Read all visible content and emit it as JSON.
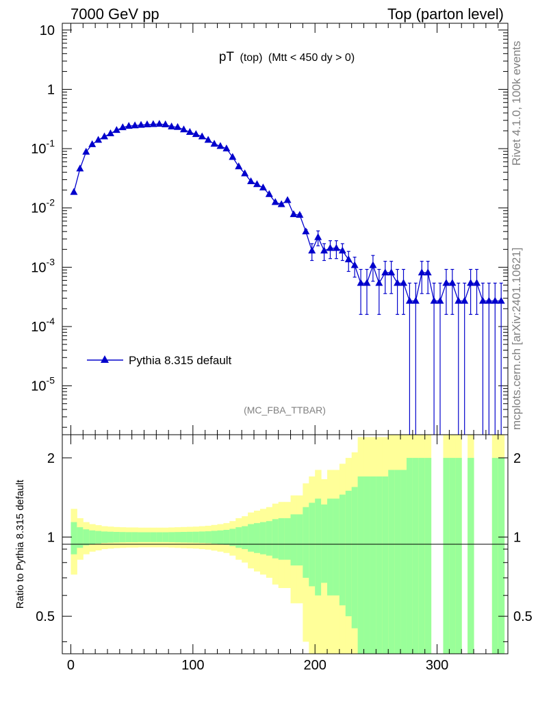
{
  "header": {
    "left": "7000 GeV pp",
    "right": "Top (parton level)"
  },
  "side": {
    "rivet": "Rivet 4.1.0,  100k events",
    "mcplots": "mcplots.cern.ch [arXiv:2401.10621]"
  },
  "colors": {
    "series": "#0000cc",
    "band_inner": "#99ff99",
    "band_outer": "#ffff99"
  },
  "chart_data": [
    {
      "type": "line",
      "panel": "main",
      "title": "pT (top) (Mtt < 450 dy > 0)",
      "title_main": "pT",
      "title_sub": "(top)",
      "title_cut": "(Mtt < 450 dy > 0)",
      "analysis_label": "(MC_FBA_TTBAR)",
      "yscale": "log",
      "ylim": [
        1.5e-06,
        13
      ],
      "xlim": [
        -7,
        358
      ],
      "ytick_labels": {
        "10": "10",
        "1": "1",
        "0.1": "10^-1",
        "0.01": "10^-2",
        "0.001": "10^-3",
        "0.0001": "10^-4",
        "0.00001": "10^-5"
      },
      "legend_position": "bottom-left",
      "series": [
        {
          "name": "Pythia 8.315 default",
          "marker": "triangle-up",
          "x": [
            2.5,
            7.5,
            12.5,
            17.5,
            22.5,
            27.5,
            32.5,
            37.5,
            42.5,
            47.5,
            52.5,
            57.5,
            62.5,
            67.5,
            72.5,
            77.5,
            82.5,
            87.5,
            92.5,
            97.5,
            102.5,
            107.5,
            112.5,
            117.5,
            122.5,
            127.5,
            132.5,
            137.5,
            142.5,
            147.5,
            152.5,
            157.5,
            162.5,
            167.5,
            172.5,
            177.5,
            182.5,
            187.5,
            192.5,
            197.5,
            202.5,
            207.5,
            212.5,
            217.5,
            222.5,
            227.5,
            232.5,
            237.5,
            242.5,
            247.5,
            252.5,
            257.5,
            262.5,
            267.5,
            272.5,
            277.5,
            282.5,
            287.5,
            292.5,
            297.5,
            302.5,
            307.5,
            312.5,
            317.5,
            322.5,
            327.5,
            332.5,
            337.5,
            342.5,
            347.5,
            352.5
          ],
          "values": [
            0.0185,
            0.046,
            0.088,
            0.118,
            0.14,
            0.16,
            0.18,
            0.205,
            0.228,
            0.24,
            0.245,
            0.25,
            0.255,
            0.258,
            0.26,
            0.255,
            0.235,
            0.23,
            0.21,
            0.19,
            0.175,
            0.16,
            0.14,
            0.12,
            0.11,
            0.1,
            0.072,
            0.05,
            0.038,
            0.028,
            0.025,
            0.022,
            0.017,
            0.0125,
            0.0115,
            0.0135,
            0.0078,
            0.0076,
            0.004,
            0.0019,
            0.0032,
            0.0019,
            0.0021,
            0.0021,
            0.0019,
            0.00135,
            0.00108,
            0.00054,
            0.00054,
            0.00108,
            0.00054,
            0.00081,
            0.00081,
            0.00054,
            0.00054,
            0.00027,
            0.00027,
            0.00081,
            0.00081,
            0.00027,
            0.00027,
            0.00054,
            0.00054,
            0.00027,
            0.00027,
            0.00054,
            0.00054,
            0.00027,
            0.00027,
            0.00027,
            0.00027
          ],
          "err": [
            0.0005,
            0.001,
            0.0015,
            0.002,
            0.002,
            0.002,
            0.002,
            0.002,
            0.002,
            0.002,
            0.002,
            0.002,
            0.002,
            0.002,
            0.002,
            0.002,
            0.002,
            0.002,
            0.002,
            0.002,
            0.002,
            0.0018,
            0.0016,
            0.0015,
            0.0014,
            0.0013,
            0.0011,
            0.0009,
            0.0008,
            0.0007,
            0.0007,
            0.0007,
            0.0006,
            0.0005,
            0.0005,
            0.0006,
            0.0004,
            0.0004,
            0.0003,
            0.0006,
            0.0009,
            0.0006,
            0.0007,
            0.0007,
            0.0006,
            0.0005,
            0.0004,
            0.00038,
            0.00038,
            0.0005,
            0.00038,
            0.00045,
            0.00045,
            0.00038,
            0.00038,
            0.00027,
            0.00027,
            0.00045,
            0.00045,
            0.00027,
            0.00027,
            0.00038,
            0.00038,
            0.00027,
            0.00027,
            0.00038,
            0.00038,
            0.00027,
            0.00027,
            0.00027,
            0.00027
          ]
        }
      ]
    },
    {
      "type": "area",
      "panel": "ratio",
      "ylabel": "Ratio to Pythia 8.315 default",
      "xlabel": "",
      "yscale": "log",
      "ylim": [
        0.36,
        2.45
      ],
      "xlim": [
        -7,
        358
      ],
      "ytick_labels": [
        "0.5",
        "1",
        "2"
      ],
      "xtick_labels": [
        "0",
        "100",
        "200",
        "300"
      ],
      "bin_width": 5,
      "x_low": [
        0,
        5,
        10,
        15,
        20,
        25,
        30,
        35,
        40,
        45,
        50,
        55,
        60,
        65,
        70,
        75,
        80,
        85,
        90,
        95,
        100,
        105,
        110,
        115,
        120,
        125,
        130,
        135,
        140,
        145,
        150,
        155,
        160,
        165,
        170,
        175,
        180,
        185,
        190,
        195,
        200,
        205,
        210,
        215,
        220,
        225,
        230,
        235,
        240,
        245,
        250,
        255,
        260,
        265,
        270,
        275,
        280,
        285,
        290,
        295,
        300,
        305,
        310,
        315,
        320,
        325,
        330,
        335,
        340,
        345,
        350
      ],
      "inner_halfwidth": [
        0.14,
        0.09,
        0.07,
        0.06,
        0.055,
        0.05,
        0.048,
        0.046,
        0.045,
        0.044,
        0.044,
        0.043,
        0.043,
        0.043,
        0.043,
        0.043,
        0.044,
        0.045,
        0.046,
        0.047,
        0.048,
        0.05,
        0.052,
        0.056,
        0.06,
        0.065,
        0.075,
        0.09,
        0.1,
        0.12,
        0.13,
        0.14,
        0.15,
        0.17,
        0.18,
        0.18,
        0.22,
        0.22,
        0.3,
        0.35,
        0.4,
        0.33,
        0.4,
        0.4,
        0.45,
        0.5,
        0.55,
        0.7,
        0.7,
        0.7,
        0.7,
        0.7,
        0.8,
        0.8,
        0.8,
        1.0,
        1.0,
        1.0,
        1.0,
        0.0,
        0.0,
        1.0,
        1.0,
        1.0,
        0.0,
        1.0,
        0.0,
        0.0,
        0.0,
        1.0,
        1.0
      ],
      "outer_halfwidth": [
        0.28,
        0.18,
        0.14,
        0.12,
        0.11,
        0.1,
        0.096,
        0.092,
        0.09,
        0.088,
        0.088,
        0.086,
        0.086,
        0.086,
        0.086,
        0.086,
        0.088,
        0.09,
        0.092,
        0.094,
        0.096,
        0.1,
        0.104,
        0.112,
        0.12,
        0.13,
        0.15,
        0.18,
        0.2,
        0.24,
        0.26,
        0.28,
        0.3,
        0.34,
        0.36,
        0.36,
        0.44,
        0.44,
        0.6,
        0.7,
        0.8,
        0.66,
        0.8,
        0.8,
        0.9,
        1.0,
        1.1,
        1.4,
        1.4,
        1.4,
        1.4,
        1.4,
        1.6,
        1.6,
        1.6,
        2.0,
        2.0,
        2.0,
        2.0,
        0.0,
        0.0,
        2.0,
        2.0,
        2.0,
        0.0,
        2.0,
        0.0,
        0.0,
        0.0,
        2.0,
        2.0
      ],
      "reference_line": 1
    }
  ]
}
